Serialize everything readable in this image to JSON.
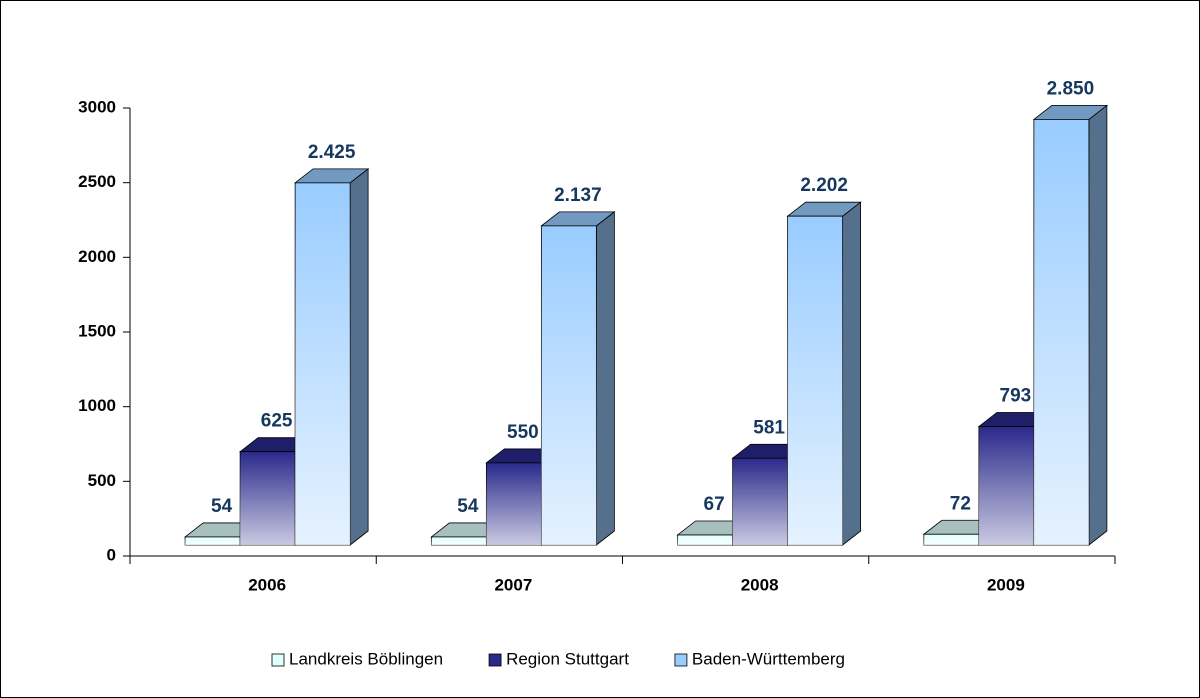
{
  "chart_data": {
    "type": "bar3d",
    "categories": [
      "2006",
      "2007",
      "2008",
      "2009"
    ],
    "series": [
      {
        "name": "Landkreis Böblingen",
        "color": "#e0ffff",
        "values": [
          54,
          54,
          67,
          72
        ]
      },
      {
        "name": "Region Stuttgart",
        "color": "#2a2a8c",
        "values": [
          625,
          550,
          581,
          793
        ]
      },
      {
        "name": "Baden-Württemberg",
        "color": "#99ccff",
        "values": [
          2425,
          2137,
          2202,
          2850
        ],
        "value_labels": [
          "2.425",
          "2.137",
          "2.202",
          "2.850"
        ]
      }
    ],
    "ylim": [
      0,
      3000
    ],
    "yticks": [
      0,
      500,
      1000,
      1500,
      2000,
      2500,
      3000
    ],
    "legend": "bottom"
  }
}
